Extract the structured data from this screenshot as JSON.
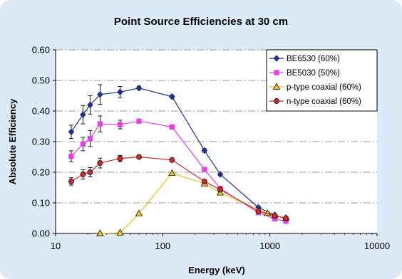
{
  "chart_data": {
    "type": "scatter",
    "title": "Point Source Efficiencies at 30 cm",
    "xlabel": "Energy (keV)",
    "ylabel": "Absolute Efficiency",
    "xscale": "log",
    "xlim": [
      10,
      10000
    ],
    "ylim": [
      0,
      0.6
    ],
    "xticks": [
      "10",
      "100",
      "1000",
      "10000"
    ],
    "yticks": [
      "0.00",
      "0.10",
      "0.20",
      "0.30",
      "0.40",
      "0.50",
      "0.60"
    ],
    "grid": "horizontal dash-dot",
    "legend_position": "top-right",
    "series": [
      {
        "name": "BE6530 (60%)",
        "color": "#1f2f8a",
        "marker": "diamond",
        "x": [
          14,
          18,
          21,
          26,
          40,
          60,
          122,
          245,
          344,
          780,
          1110,
          1410
        ],
        "y": [
          0.332,
          0.388,
          0.42,
          0.454,
          0.462,
          0.475,
          0.447,
          0.271,
          0.193,
          0.085,
          0.06,
          0.048
        ],
        "err": [
          0.022,
          0.03,
          0.03,
          0.032,
          0.018,
          0.006,
          0.005,
          0.006,
          0.004,
          0.003,
          0.003,
          0.003
        ]
      },
      {
        "name": "BE5030 (50%)",
        "color": "#e83de8",
        "marker": "square",
        "x": [
          14,
          18,
          21,
          26,
          40,
          60,
          122,
          245,
          344,
          780,
          1110,
          1410
        ],
        "y": [
          0.252,
          0.292,
          0.31,
          0.358,
          0.356,
          0.367,
          0.348,
          0.209,
          0.147,
          0.068,
          0.048,
          0.04
        ],
        "err": [
          0.018,
          0.022,
          0.026,
          0.026,
          0.014,
          0.005,
          0.005,
          0.005,
          0.004,
          0.003,
          0.003,
          0.003
        ]
      },
      {
        "name": "p-type coaxial (60%)",
        "color": "#e8c21e",
        "marker": "triangle",
        "x": [
          26,
          40,
          60,
          122,
          245,
          344,
          950,
          1110,
          1410
        ],
        "y": [
          0.0,
          0.002,
          0.065,
          0.197,
          0.163,
          0.133,
          0.066,
          0.059,
          0.05
        ]
      },
      {
        "name": "n-type coaxial (60%)",
        "color": "#cc2a2a",
        "marker": "circle",
        "x": [
          14,
          18,
          21,
          26,
          40,
          60,
          122,
          245,
          344,
          780,
          1110,
          1410
        ],
        "y": [
          0.17,
          0.193,
          0.2,
          0.23,
          0.245,
          0.25,
          0.24,
          0.17,
          0.143,
          0.073,
          0.058,
          0.05
        ],
        "err": [
          0.012,
          0.015,
          0.015,
          0.016,
          0.01,
          0.004,
          0.004,
          0.004,
          0.004,
          0.003,
          0.003,
          0.003
        ]
      }
    ]
  }
}
